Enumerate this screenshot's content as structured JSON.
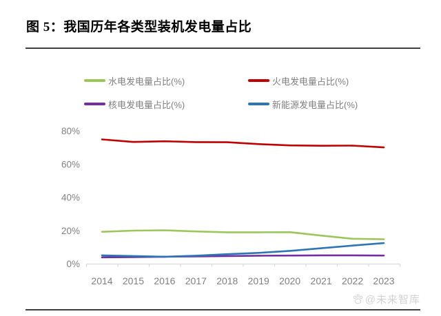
{
  "figure": {
    "title": "图 5：我国历年各类型装机发电量占比",
    "watermark": "@未来智库"
  },
  "chart_data": {
    "type": "line",
    "x": [
      "2014",
      "2015",
      "2016",
      "2017",
      "2018",
      "2019",
      "2020",
      "2021",
      "2022",
      "2023"
    ],
    "xlabel": "",
    "ylabel": "",
    "ylim": [
      0,
      80
    ],
    "yticks": [
      0,
      20,
      40,
      60,
      80
    ],
    "ytick_labels": [
      "0%",
      "20%",
      "40%",
      "60%",
      "80%"
    ],
    "grid": false,
    "legend_position": "top",
    "axis_color": "#d9d9d9",
    "tick_label_color": "#808080",
    "series": [
      {
        "name": "水电发电量占比(%)",
        "color": "#9cc65a",
        "values": [
          19.2,
          19.9,
          20.1,
          19.4,
          18.9,
          18.9,
          19.0,
          16.9,
          15.0,
          14.7
        ]
      },
      {
        "name": "火电发电量占比(%)",
        "color": "#c00000",
        "values": [
          74.8,
          73.3,
          73.7,
          73.2,
          73.1,
          72.0,
          71.2,
          71.0,
          71.1,
          70.0
        ]
      },
      {
        "name": "核电发电量占比(%)",
        "color": "#7030a0",
        "values": [
          3.8,
          4.0,
          4.2,
          4.4,
          4.6,
          4.8,
          4.9,
          5.0,
          5.0,
          4.9
        ]
      },
      {
        "name": "新能源发电量占比(%)",
        "color": "#2e75b6",
        "values": [
          5.0,
          4.6,
          4.2,
          4.8,
          5.7,
          6.5,
          7.7,
          9.3,
          10.9,
          12.4
        ]
      }
    ],
    "draw_order": [
      0,
      2,
      3,
      1
    ]
  }
}
